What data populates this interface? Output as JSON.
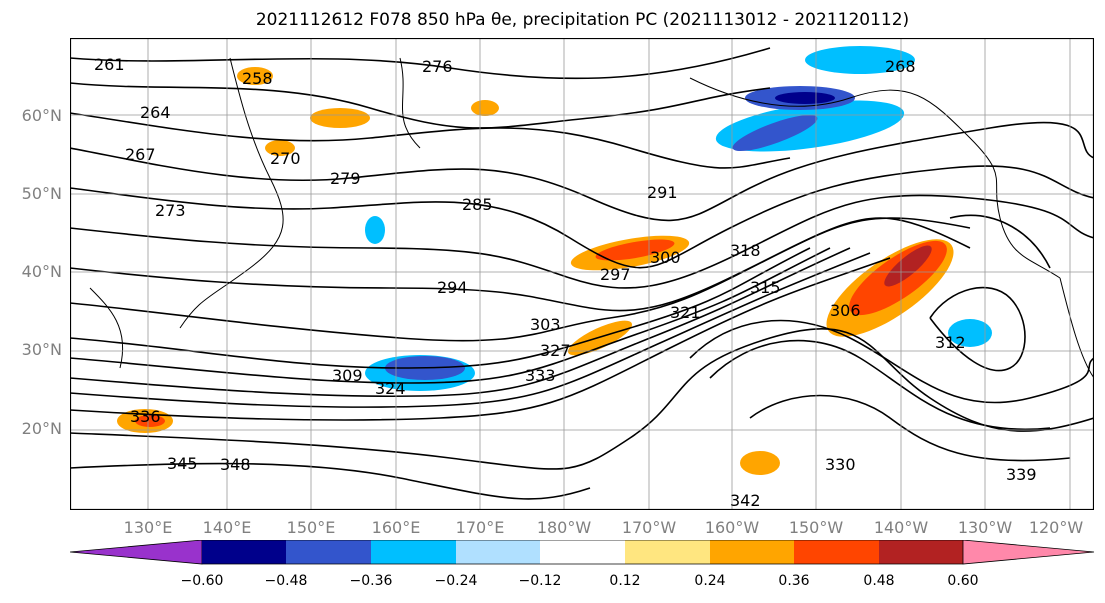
{
  "title": "2021112612 F078 850 hPa θe, precipitation PC (2021113012 - 2021120112)",
  "lat_labels": [
    "60°N",
    "50°N",
    "40°N",
    "30°N",
    "20°N"
  ],
  "lon_labels": [
    "130°E",
    "140°E",
    "150°E",
    "160°E",
    "170°E",
    "180°W",
    "170°W",
    "160°W",
    "150°W",
    "140°W",
    "130°W",
    "120°W"
  ],
  "contour_labels": [
    "261",
    "258",
    "264",
    "267",
    "270",
    "276",
    "268",
    "279",
    "273",
    "285",
    "291",
    "294",
    "297",
    "300",
    "303",
    "306",
    "309",
    "312",
    "315",
    "318",
    "321",
    "324",
    "327",
    "330",
    "333",
    "336",
    "339",
    "342",
    "345",
    "348"
  ],
  "colorbar": {
    "tick_labels": [
      "−0.60",
      "−0.48",
      "−0.36",
      "−0.24",
      "−0.12",
      "0.12",
      "0.24",
      "0.36",
      "0.48",
      "0.60"
    ],
    "colors": [
      "#9932cc",
      "#00008b",
      "#3355cc",
      "#00bfff",
      "#b0e0ff",
      "#ffffff",
      "#ffe680",
      "#ffa500",
      "#ff4500",
      "#b22222",
      "#ff88aa"
    ]
  }
}
